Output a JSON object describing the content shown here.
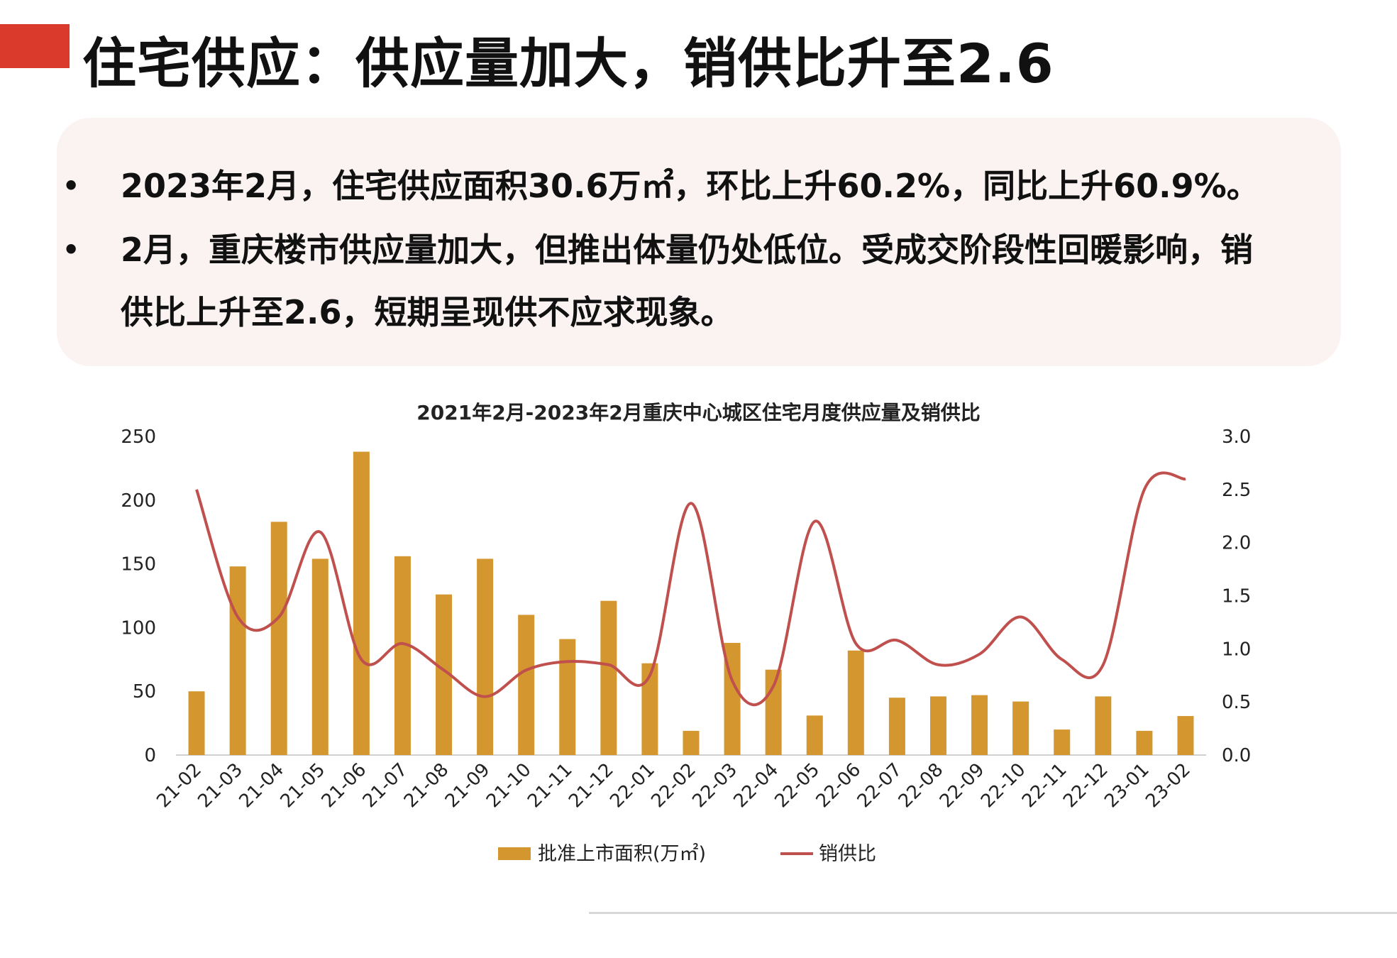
{
  "header": {
    "title": "住宅供应：供应量加大，销供比升至2.6",
    "accent_color": "#d93a2b"
  },
  "summary": {
    "bullets": [
      "2023年2月，住宅供应面积30.6万㎡，环比上升60.2%，同比上升60.9%。",
      "2月，重庆楼市供应量加大，但推出体量仍处低位。受成交阶段性回暖影响，销供比上升至2.6，短期呈现供不应求现象。"
    ],
    "bullet_symbol": "•"
  },
  "chart_data": {
    "type": "bar",
    "title": "2021年2月-2023年2月重庆中心城区住宅月度供应量及销供比",
    "categories": [
      "21-02",
      "21-03",
      "21-04",
      "21-05",
      "21-06",
      "21-07",
      "21-08",
      "21-09",
      "21-10",
      "21-11",
      "21-12",
      "22-01",
      "22-02",
      "22-03",
      "22-04",
      "22-05",
      "22-06",
      "22-07",
      "22-08",
      "22-09",
      "22-10",
      "22-11",
      "22-12",
      "23-01",
      "23-02"
    ],
    "series": [
      {
        "name": "批准上市面积(万㎡)",
        "type": "bar",
        "axis": "left",
        "color": "#d4962e",
        "values": [
          50,
          148,
          183,
          154,
          238,
          156,
          126,
          154,
          110,
          91,
          121,
          72,
          19,
          88,
          67,
          31,
          82,
          45,
          46,
          47,
          42,
          20,
          46,
          19,
          30.6
        ]
      },
      {
        "name": "销供比",
        "type": "line",
        "axis": "right",
        "color": "#c0504d",
        "smooth": true,
        "values": [
          2.5,
          1.3,
          1.3,
          2.1,
          0.9,
          1.05,
          0.8,
          0.55,
          0.8,
          0.88,
          0.85,
          0.75,
          2.37,
          0.7,
          0.65,
          2.2,
          1.05,
          1.08,
          0.85,
          0.95,
          1.3,
          0.9,
          0.85,
          2.5,
          2.6
        ]
      }
    ],
    "y_left": {
      "min": 0,
      "max": 250,
      "ticks": [
        "0",
        "50",
        "100",
        "150",
        "200",
        "250"
      ]
    },
    "y_right": {
      "min": 0,
      "max": 3,
      "ticks": [
        "0.0",
        "0.5",
        "1.0",
        "1.5",
        "2.0",
        "2.5",
        "3.0"
      ]
    },
    "legend_position": "bottom",
    "grid": false
  }
}
